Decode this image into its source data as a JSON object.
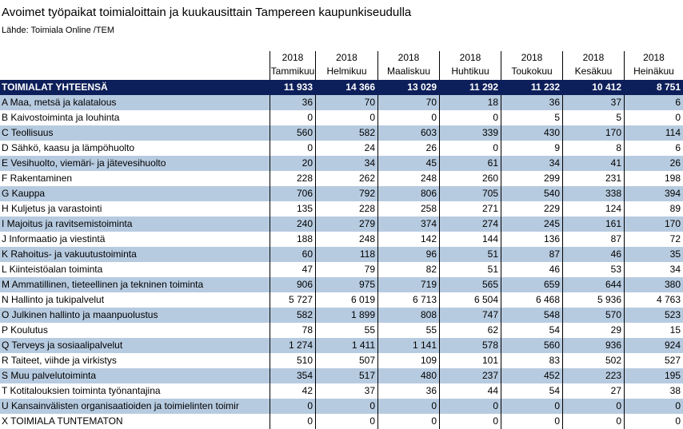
{
  "title": "Avoimet työpaikat toimialoittain ja kuukausittain Tampereen kaupunkiseudulla",
  "source": "Lähde: Toimiala Online /TEM",
  "columns": [
    {
      "year": "2018",
      "month": "Tammikuu"
    },
    {
      "year": "2018",
      "month": "Helmikuu"
    },
    {
      "year": "2018",
      "month": "Maaliskuu"
    },
    {
      "year": "2018",
      "month": "Huhtikuu"
    },
    {
      "year": "2018",
      "month": "Toukokuu"
    },
    {
      "year": "2018",
      "month": "Kesäkuu"
    },
    {
      "year": "2018",
      "month": "Heinäkuu"
    }
  ],
  "total": {
    "label": "TOIMIALAT YHTEENSÄ",
    "values": [
      "11 933",
      "14 366",
      "13 029",
      "11 292",
      "11 232",
      "10 412",
      "8 751"
    ]
  },
  "rows": [
    {
      "label": "A Maa, metsä ja kalatalous",
      "values": [
        "36",
        "70",
        "70",
        "18",
        "36",
        "37",
        "6"
      ]
    },
    {
      "label": "B Kaivostoiminta ja louhinta",
      "values": [
        "0",
        "0",
        "0",
        "0",
        "5",
        "5",
        "0"
      ]
    },
    {
      "label": "C Teollisuus",
      "values": [
        "560",
        "582",
        "603",
        "339",
        "430",
        "170",
        "114"
      ]
    },
    {
      "label": "D Sähkö, kaasu ja lämpöhuolto",
      "values": [
        "0",
        "24",
        "26",
        "0",
        "9",
        "8",
        "6"
      ]
    },
    {
      "label": "E Vesihuolto, viemäri- ja jätevesihuolto",
      "values": [
        "20",
        "34",
        "45",
        "61",
        "34",
        "41",
        "26"
      ]
    },
    {
      "label": "F Rakentaminen",
      "values": [
        "228",
        "262",
        "248",
        "260",
        "299",
        "231",
        "198"
      ]
    },
    {
      "label": "G Kauppa",
      "values": [
        "706",
        "792",
        "806",
        "705",
        "540",
        "338",
        "394"
      ]
    },
    {
      "label": "H Kuljetus ja varastointi",
      "values": [
        "135",
        "228",
        "258",
        "271",
        "229",
        "124",
        "89"
      ]
    },
    {
      "label": "I Majoitus ja ravitsemistoiminta",
      "values": [
        "240",
        "279",
        "374",
        "274",
        "245",
        "161",
        "170"
      ]
    },
    {
      "label": "J Informaatio ja viestintä",
      "values": [
        "188",
        "248",
        "142",
        "144",
        "136",
        "87",
        "72"
      ]
    },
    {
      "label": "K Rahoitus- ja vakuutustoiminta",
      "values": [
        "60",
        "118",
        "96",
        "51",
        "87",
        "46",
        "35"
      ]
    },
    {
      "label": "L Kiinteistöalan toiminta",
      "values": [
        "47",
        "79",
        "82",
        "51",
        "46",
        "53",
        "34"
      ]
    },
    {
      "label": "M Ammatillinen, tieteellinen ja tekninen toiminta",
      "values": [
        "906",
        "975",
        "719",
        "565",
        "659",
        "644",
        "380"
      ]
    },
    {
      "label": "N Hallinto ja tukipalvelut",
      "values": [
        "5 727",
        "6 019",
        "6 713",
        "6 504",
        "6 468",
        "5 936",
        "4 763"
      ]
    },
    {
      "label": "O Julkinen hallinto ja maanpuolustus",
      "values": [
        "582",
        "1 899",
        "808",
        "747",
        "548",
        "570",
        "523"
      ]
    },
    {
      "label": "P Koulutus",
      "values": [
        "78",
        "55",
        "55",
        "62",
        "54",
        "29",
        "15"
      ]
    },
    {
      "label": "Q Terveys ja sosiaalipalvelut",
      "values": [
        "1 274",
        "1 411",
        "1 141",
        "578",
        "560",
        "936",
        "924"
      ]
    },
    {
      "label": "R Taiteet, viihde ja virkistys",
      "values": [
        "510",
        "507",
        "109",
        "101",
        "83",
        "502",
        "527"
      ]
    },
    {
      "label": "S Muu palvelutoiminta",
      "values": [
        "354",
        "517",
        "480",
        "237",
        "452",
        "223",
        "195"
      ]
    },
    {
      "label": "T Kotitalouksien toiminta työnantajina",
      "values": [
        "42",
        "37",
        "36",
        "44",
        "54",
        "27",
        "38"
      ]
    },
    {
      "label": "U Kansainvälisten organisaatioiden ja toimielinten toimir",
      "values": [
        "0",
        "0",
        "0",
        "0",
        "0",
        "0",
        "0"
      ]
    },
    {
      "label": "X TOIMIALA TUNTEMATON",
      "values": [
        "0",
        "0",
        "0",
        "0",
        "0",
        "0",
        "0"
      ]
    }
  ]
}
